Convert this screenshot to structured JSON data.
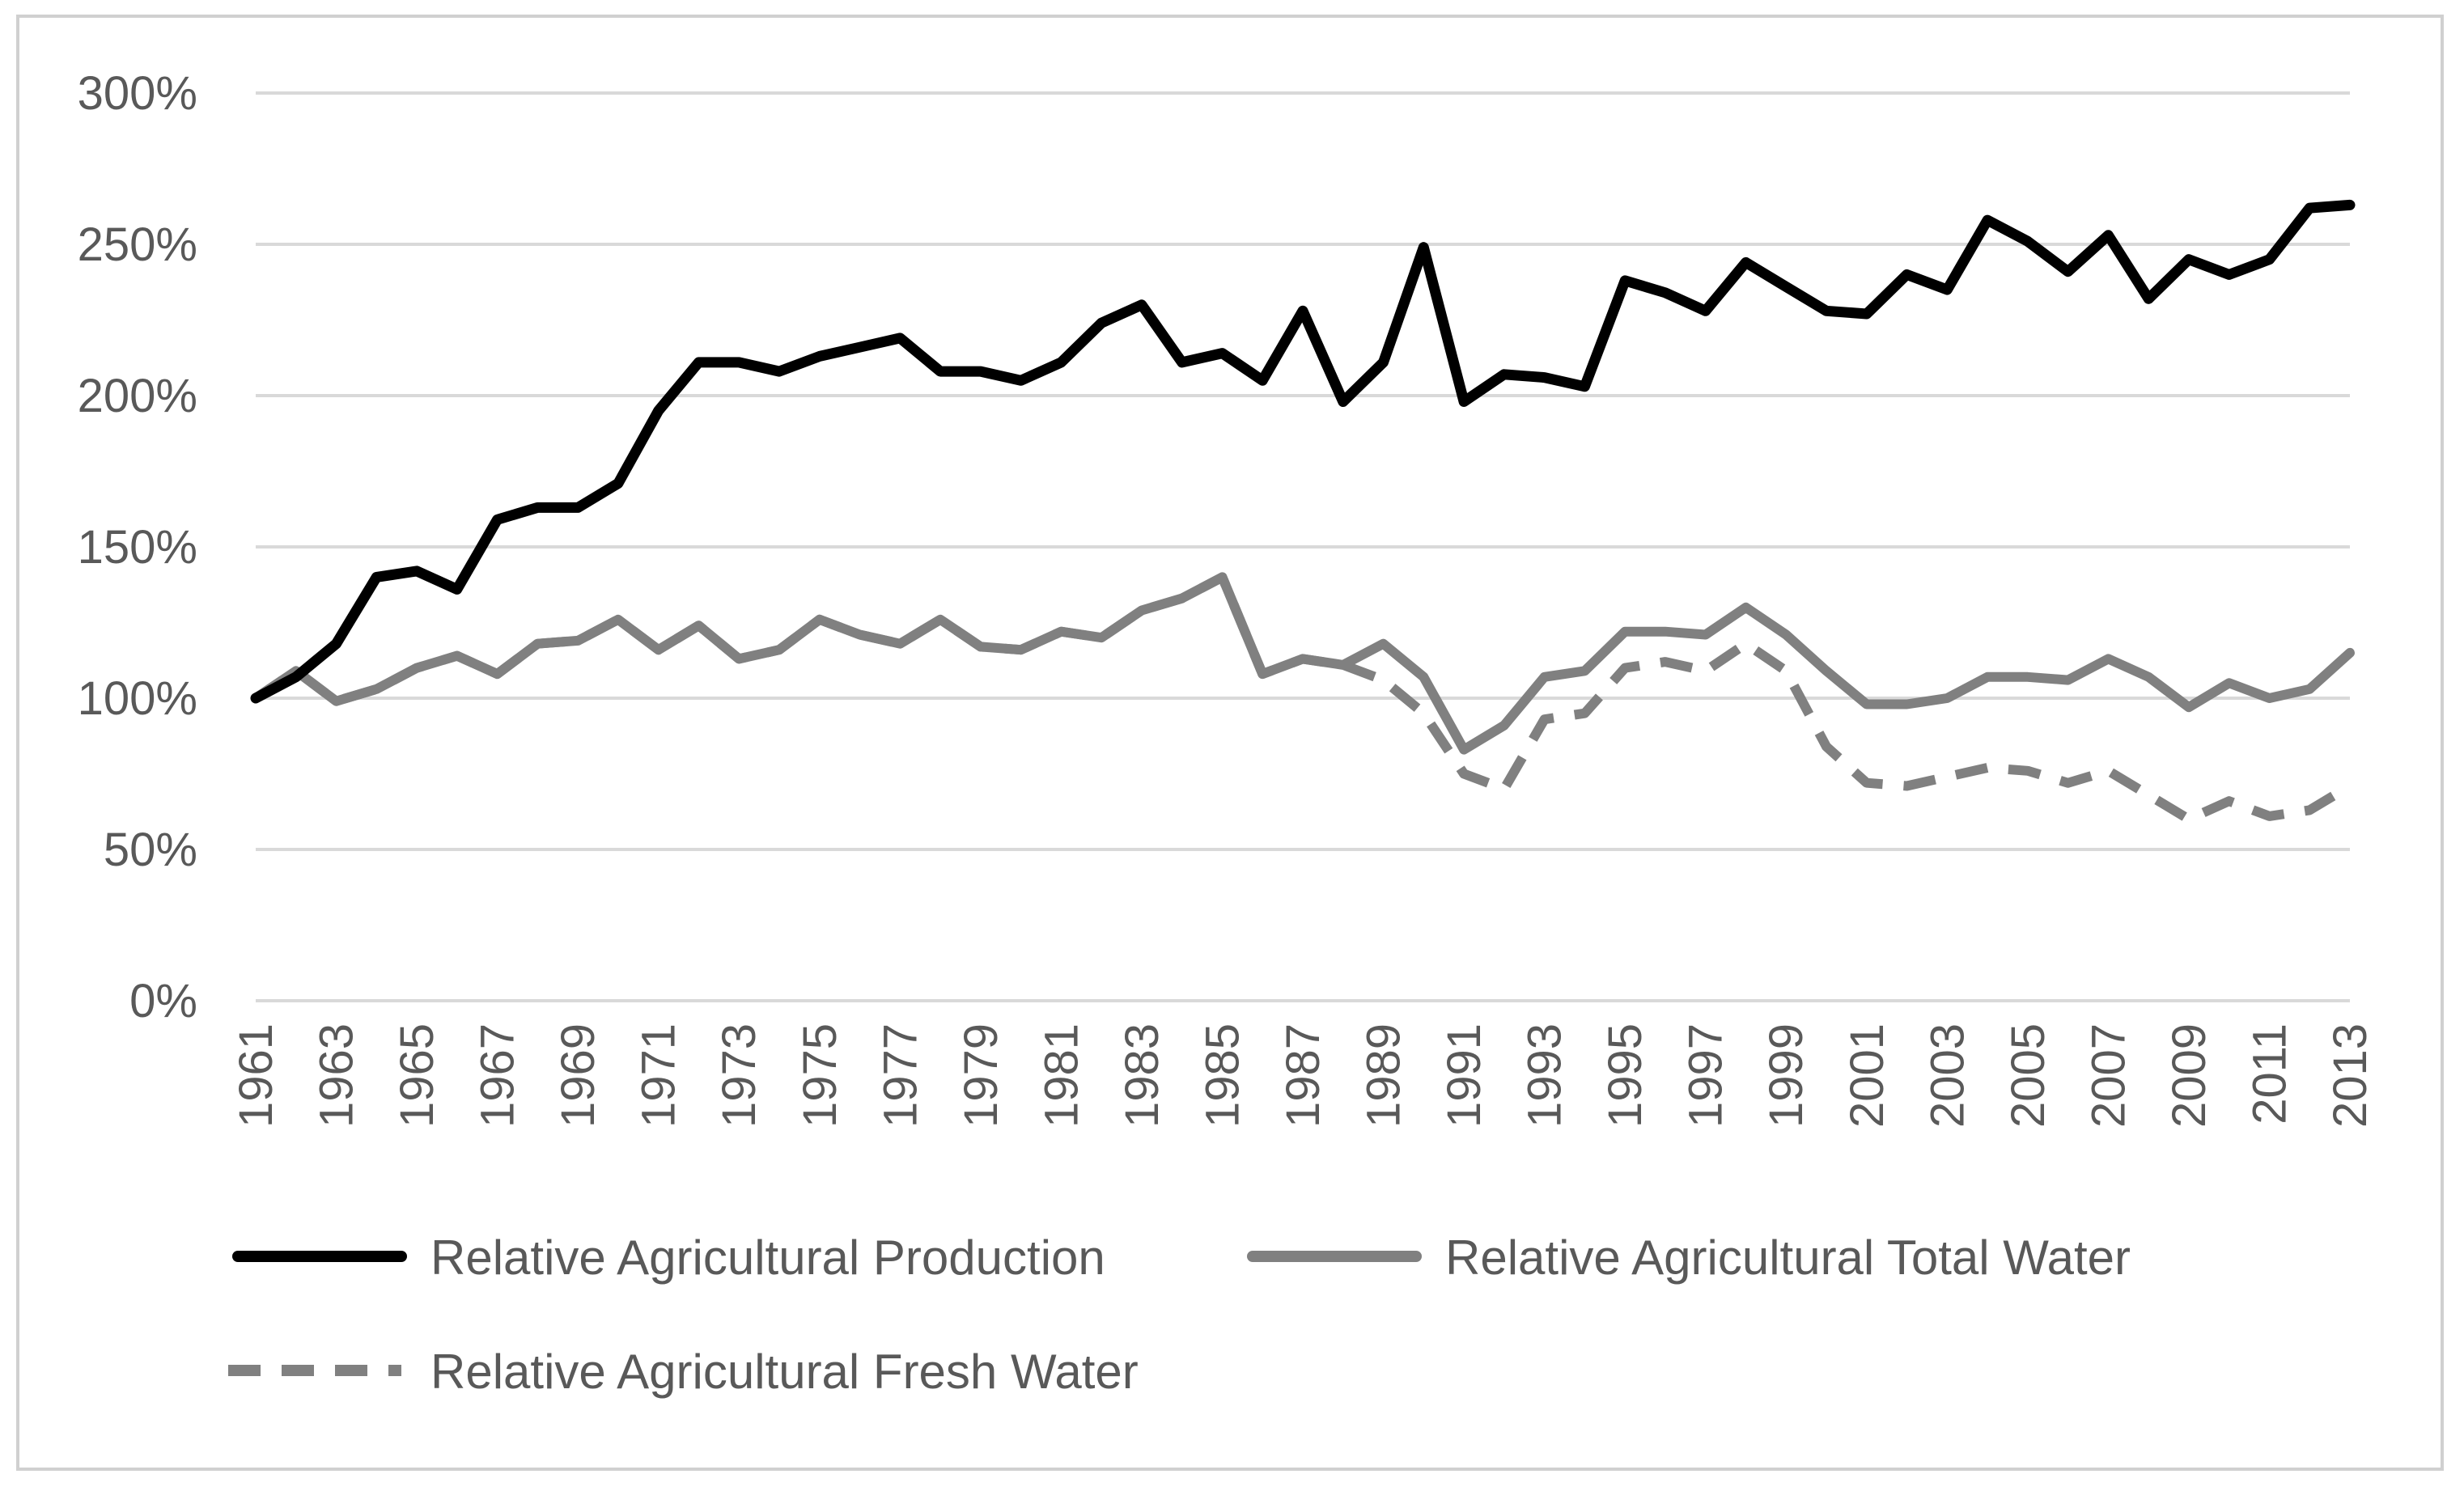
{
  "chart_data": {
    "type": "line",
    "x": [
      1961,
      1962,
      1963,
      1964,
      1965,
      1966,
      1967,
      1968,
      1969,
      1970,
      1971,
      1972,
      1973,
      1974,
      1975,
      1976,
      1977,
      1978,
      1979,
      1980,
      1981,
      1982,
      1983,
      1984,
      1985,
      1986,
      1987,
      1988,
      1989,
      1990,
      1991,
      1992,
      1993,
      1994,
      1995,
      1996,
      1997,
      1998,
      1999,
      2000,
      2001,
      2002,
      2003,
      2004,
      2005,
      2006,
      2007,
      2008,
      2009,
      2010,
      2011,
      2012,
      2013
    ],
    "x_tick_labels": [
      "1961",
      "1963",
      "1965",
      "1967",
      "1969",
      "1971",
      "1973",
      "1975",
      "1977",
      "1979",
      "1981",
      "1983",
      "1985",
      "1987",
      "1989",
      "1991",
      "1993",
      "1995",
      "1997",
      "1999",
      "2001",
      "2003",
      "2005",
      "2007",
      "2009",
      "2011",
      "2013"
    ],
    "y_tick_labels": [
      "0%",
      "50%",
      "100%",
      "150%",
      "200%",
      "250%",
      "300%"
    ],
    "ylim": [
      0,
      300
    ],
    "grid": "horizontal",
    "legend_position": "bottom",
    "series": [
      {
        "name": "Relative Agricultural Production",
        "color": "#000000",
        "style": "solid",
        "values": [
          100,
          107,
          118,
          140,
          142,
          136,
          159,
          163,
          163,
          171,
          195,
          211,
          211,
          208,
          213,
          216,
          219,
          208,
          208,
          205,
          211,
          224,
          230,
          211,
          214,
          205,
          228,
          198,
          211,
          249,
          198,
          207,
          206,
          203,
          238,
          234,
          228,
          244,
          236,
          228,
          227,
          240,
          235,
          258,
          251,
          241,
          253,
          232,
          245,
          240,
          245,
          262,
          263
        ]
      },
      {
        "name": "Relative Agricultural Total Water",
        "color": "#808080",
        "style": "solid",
        "values": [
          100,
          109,
          99,
          103,
          110,
          114,
          108,
          118,
          119,
          126,
          116,
          124,
          113,
          116,
          126,
          121,
          118,
          126,
          117,
          116,
          122,
          120,
          129,
          133,
          140,
          108,
          113,
          111,
          118,
          107,
          83,
          91,
          107,
          109,
          122,
          122,
          121,
          130,
          121,
          109,
          98,
          98,
          100,
          107,
          107,
          106,
          113,
          107,
          97,
          105,
          100,
          103,
          115
        ]
      },
      {
        "name": "Relative Agricultural Fresh Water",
        "color": "#808080",
        "style": "dashed",
        "values": [
          100,
          109,
          99,
          103,
          110,
          114,
          108,
          118,
          119,
          126,
          116,
          124,
          113,
          116,
          126,
          121,
          118,
          126,
          117,
          116,
          122,
          120,
          129,
          133,
          140,
          108,
          113,
          111,
          106,
          95,
          75,
          70,
          93,
          95,
          110,
          112,
          109,
          118,
          109,
          84,
          72,
          71,
          74,
          77,
          76,
          72,
          76,
          68,
          60,
          66,
          61,
          63,
          71
        ]
      }
    ]
  }
}
